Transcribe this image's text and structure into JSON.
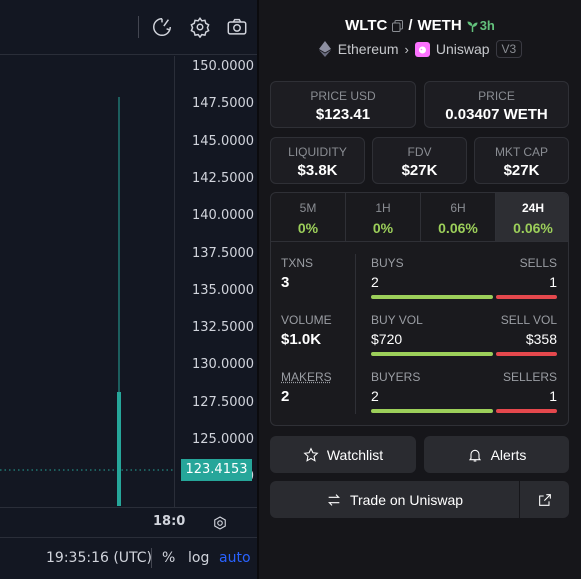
{
  "chart": {
    "price_ticks": [
      "150.0000",
      "147.5000",
      "145.0000",
      "142.5000",
      "140.0000",
      "137.5000",
      "135.0000",
      "132.5000",
      "130.0000",
      "127.5000",
      "125.0000",
      "122.5000"
    ],
    "last_price": "123.4153",
    "time_label": "18:0",
    "clock": "19:35:16 (UTC)",
    "percent_label": "%",
    "log_label": "log",
    "auto_label": "auto",
    "candle_color": "#26a69a",
    "accent": "#2962ff"
  },
  "pair": {
    "base": "WLTC",
    "separator": "/",
    "quote": "WETH",
    "age": "3h",
    "chain": "Ethereum",
    "dex": "Uniswap",
    "version": "V3"
  },
  "prices": {
    "usd_label": "PRICE USD",
    "usd_value": "$123.41",
    "native_label": "PRICE",
    "native_value": "0.03407 WETH"
  },
  "metrics": [
    {
      "label": "LIQUIDITY",
      "value": "$3.8K"
    },
    {
      "label": "FDV",
      "value": "$27K"
    },
    {
      "label": "MKT CAP",
      "value": "$27K"
    }
  ],
  "timeframes": [
    {
      "label": "5M",
      "value": "0%",
      "active": false
    },
    {
      "label": "1H",
      "value": "0%",
      "active": false
    },
    {
      "label": "6H",
      "value": "0.06%",
      "active": false
    },
    {
      "label": "24H",
      "value": "0.06%",
      "active": true
    }
  ],
  "stats": {
    "txns_label": "TXNS",
    "txns_value": "3",
    "volume_label": "VOLUME",
    "volume_value": "$1.0K",
    "makers_label": "MAKERS",
    "makers_value": "2",
    "buys_label": "BUYS",
    "buys_value": "2",
    "sells_label": "SELLS",
    "sells_value": "1",
    "buy_vol_label": "BUY VOL",
    "buy_vol_value": "$720",
    "sell_vol_label": "SELL VOL",
    "sell_vol_value": "$358",
    "buyers_label": "BUYERS",
    "buyers_value": "2",
    "sellers_label": "SELLERS",
    "sellers_value": "1"
  },
  "actions": {
    "watchlist": "Watchlist",
    "alerts": "Alerts",
    "trade": "Trade on Uniswap"
  },
  "colors": {
    "positive": "#9ccf5a",
    "negative": "#e5484d",
    "age_green": "#63c17c"
  }
}
